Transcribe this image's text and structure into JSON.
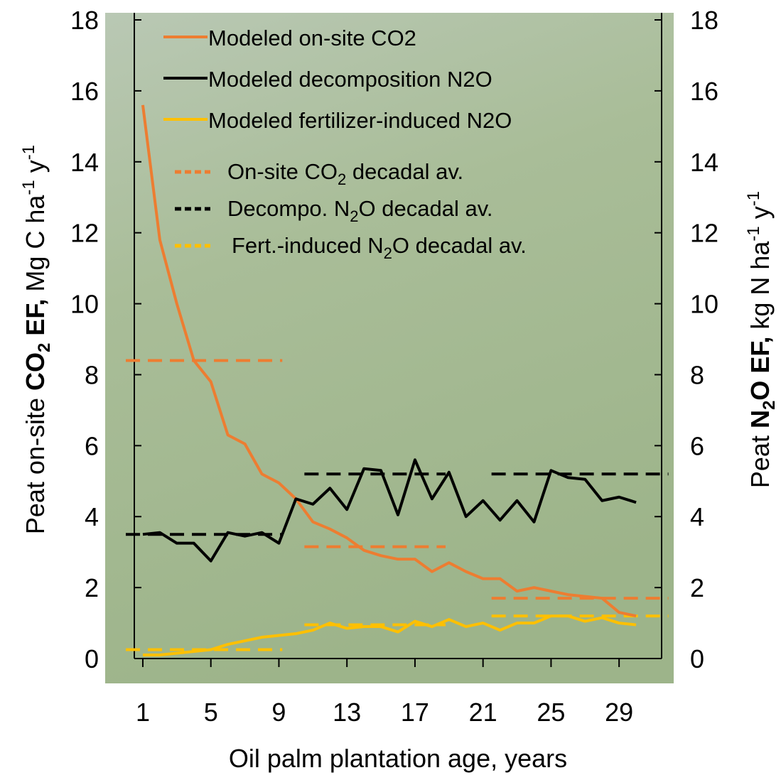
{
  "chart_data": {
    "type": "line",
    "x_label": "Oil palm plantation age, years",
    "y_label": [
      "Peat on-site ",
      "CO",
      "2",
      " EF,",
      " Mg C ha",
      "-1",
      " y",
      "-1"
    ],
    "y2_label": [
      "Peat ",
      "N",
      "2",
      "O EF,",
      " kg N ha",
      "-1",
      " y",
      "-1"
    ],
    "x": [
      1,
      2,
      3,
      4,
      5,
      6,
      7,
      8,
      9,
      10,
      11,
      12,
      13,
      14,
      15,
      16,
      17,
      18,
      19,
      20,
      21,
      22,
      23,
      24,
      25,
      26,
      27,
      28,
      29,
      30
    ],
    "xlim": [
      0.5,
      31.5
    ],
    "xticks": [
      1,
      5,
      9,
      13,
      17,
      21,
      25,
      29
    ],
    "ylim": [
      0,
      18
    ],
    "yticks": [
      0,
      2,
      4,
      6,
      8,
      10,
      12,
      14,
      16,
      18
    ],
    "y2lim": [
      0,
      18
    ],
    "y2ticks": [
      0,
      2,
      4,
      6,
      8,
      10,
      12,
      14,
      16,
      18
    ],
    "series": [
      {
        "name": "Modeled on-site CO2",
        "color": "#ed7d31",
        "values": [
          15.6,
          11.8,
          10.0,
          8.4,
          7.8,
          6.3,
          6.05,
          5.2,
          4.95,
          4.5,
          3.85,
          3.65,
          3.4,
          3.05,
          2.9,
          2.8,
          2.8,
          2.45,
          2.7,
          2.45,
          2.25,
          2.25,
          1.9,
          2.0,
          1.9,
          1.8,
          1.75,
          1.7,
          1.3,
          1.2
        ]
      },
      {
        "name": "Modeled decomposition N2O",
        "color": "#000000",
        "axis": "y2",
        "values": [
          3.5,
          3.55,
          3.25,
          3.25,
          2.75,
          3.55,
          3.45,
          3.55,
          3.25,
          4.5,
          4.35,
          4.8,
          4.2,
          5.35,
          5.3,
          4.05,
          5.6,
          4.5,
          5.25,
          4.0,
          4.45,
          3.9,
          4.45,
          3.85,
          5.3,
          5.1,
          5.05,
          4.45,
          4.55,
          4.4
        ]
      },
      {
        "name": "Modeled fertilizer-induced N2O",
        "color": "#ffc000",
        "axis": "y2",
        "values": [
          0.1,
          0.1,
          0.15,
          0.2,
          0.25,
          0.4,
          0.5,
          0.6,
          0.65,
          0.7,
          0.8,
          1.0,
          0.85,
          0.9,
          0.9,
          0.75,
          1.05,
          0.9,
          1.1,
          0.9,
          1.0,
          0.8,
          1.0,
          1.0,
          1.2,
          1.2,
          1.05,
          1.15,
          1.0,
          0.95
        ]
      }
    ],
    "decadal": [
      {
        "name": [
          "On-site CO",
          "2",
          " decadal av."
        ],
        "color": "#ed7d31",
        "x_ranges": [
          [
            0.0,
            9.2
          ],
          [
            10.5,
            18.8
          ],
          [
            21.5,
            31.9
          ]
        ],
        "values": [
          8.4,
          3.15,
          1.7
        ]
      },
      {
        "name": [
          "Decompo. N",
          "2",
          "O decadal av."
        ],
        "color": "#000000",
        "axis": "y2",
        "x_ranges": [
          [
            0.0,
            9.2
          ],
          [
            10.5,
            18.8
          ],
          [
            21.5,
            31.9
          ]
        ],
        "values": [
          3.5,
          5.2,
          5.2
        ]
      },
      {
        "name": [
          "Fert.-induced N",
          "2",
          "O decadal av."
        ],
        "color": "#ffc000",
        "axis": "y2",
        "x_ranges": [
          [
            0.0,
            9.2
          ],
          [
            10.5,
            18.8
          ],
          [
            21.5,
            31.9
          ]
        ],
        "values": [
          0.25,
          0.95,
          1.2
        ]
      }
    ]
  }
}
